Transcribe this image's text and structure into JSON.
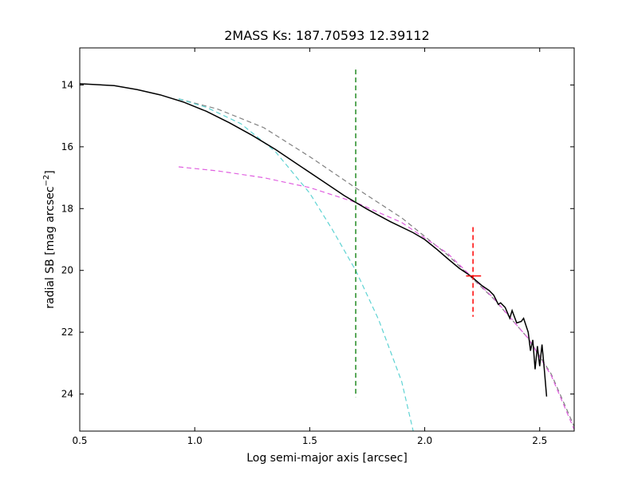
{
  "chart_data": {
    "type": "line",
    "title": "2MASS Ks: 187.70593 12.39112",
    "xlabel": "Log semi-major axis [arcsec]",
    "ylabel": "radial SB [mag arcsec",
    "ylabel_sup": "−2",
    "ylabel_close": "]",
    "xlim": [
      0.5,
      2.65
    ],
    "ylim": [
      25.2,
      12.8
    ],
    "y_inverted": true,
    "grid": false,
    "x_ticks": [
      {
        "value": 0.5,
        "label": "0.5"
      },
      {
        "value": 1.0,
        "label": "1.0"
      },
      {
        "value": 1.5,
        "label": "1.5"
      },
      {
        "value": 2.0,
        "label": "2.0"
      },
      {
        "value": 2.5,
        "label": "2.5"
      }
    ],
    "y_ticks": [
      {
        "value": 14,
        "label": "14"
      },
      {
        "value": 16,
        "label": "16"
      },
      {
        "value": 18,
        "label": "18"
      },
      {
        "value": 20,
        "label": "20"
      },
      {
        "value": 22,
        "label": "22"
      },
      {
        "value": 24,
        "label": "24"
      }
    ],
    "series": [
      {
        "style": "solid",
        "color": "#000000",
        "x": [
          0.5,
          0.65,
          0.75,
          0.85,
          0.95,
          1.05,
          1.15,
          1.25,
          1.35,
          1.45,
          1.55,
          1.65,
          1.75,
          1.85,
          1.95,
          2.0,
          2.05,
          2.1,
          2.15,
          2.2,
          2.25,
          2.28,
          2.3,
          2.32,
          2.33,
          2.35,
          2.37,
          2.38,
          2.4,
          2.42,
          2.43,
          2.45,
          2.46,
          2.47,
          2.48,
          2.49,
          2.5,
          2.51,
          2.52,
          2.53
        ],
        "y": [
          13.96,
          14.02,
          14.15,
          14.32,
          14.55,
          14.85,
          15.22,
          15.63,
          16.08,
          16.58,
          17.08,
          17.58,
          18.02,
          18.42,
          18.78,
          19.0,
          19.3,
          19.62,
          19.93,
          20.18,
          20.5,
          20.65,
          20.8,
          21.1,
          21.05,
          21.2,
          21.55,
          21.3,
          21.7,
          21.65,
          21.55,
          22.0,
          22.6,
          22.25,
          23.2,
          22.45,
          23.1,
          22.4,
          23.2,
          24.08
        ]
      },
      {
        "style": "dashed",
        "color": "#808080",
        "x": [
          0.93,
          1.1,
          1.3,
          1.5,
          1.7,
          1.9,
          2.1,
          2.3,
          2.45,
          2.55,
          2.65
        ],
        "y": [
          14.45,
          14.78,
          15.38,
          16.32,
          17.33,
          18.3,
          19.5,
          20.92,
          22.2,
          23.35,
          25.05
        ]
      },
      {
        "style": "dashed",
        "color": "#5fd3d3",
        "x": [
          0.93,
          1.05,
          1.2,
          1.35,
          1.5,
          1.6,
          1.7,
          1.8,
          1.9,
          1.95
        ],
        "y": [
          14.45,
          14.72,
          15.25,
          16.15,
          17.5,
          18.7,
          20.0,
          21.6,
          23.6,
          25.2
        ]
      },
      {
        "style": "dashed",
        "color": "#e060e0",
        "x": [
          0.93,
          1.1,
          1.3,
          1.5,
          1.7,
          1.9,
          2.1,
          2.3,
          2.45,
          2.55,
          2.65
        ],
        "y": [
          16.65,
          16.78,
          17.0,
          17.32,
          17.8,
          18.45,
          19.45,
          20.9,
          22.2,
          23.4,
          25.15
        ]
      }
    ],
    "vertical_markers": [
      {
        "x": 1.7,
        "y_top": 13.5,
        "y_bottom": 24.1,
        "color": "#228b22",
        "style": "dashed"
      },
      {
        "x": 2.21,
        "y_top": 18.6,
        "y_bottom": 21.5,
        "color": "#ff0000",
        "style": "dashed"
      }
    ],
    "horizontal_markers": [
      {
        "x_from": 2.18,
        "x_to": 2.245,
        "y": 20.18,
        "color": "#ff0000"
      }
    ]
  }
}
